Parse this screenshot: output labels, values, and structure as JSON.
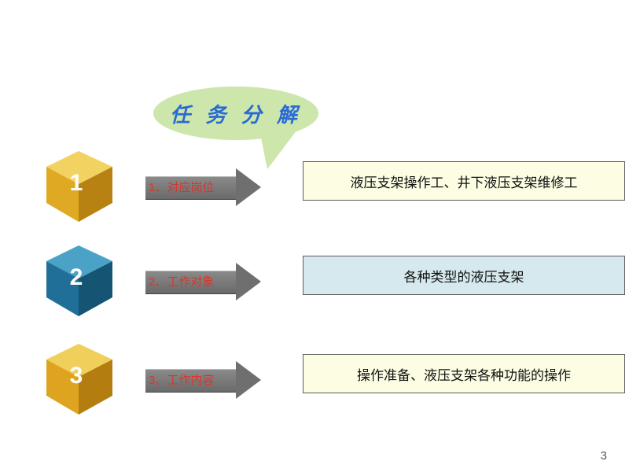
{
  "bubble": {
    "text": "任 务 分 解",
    "bg": "#cde6ac",
    "text_color": "#2a6ad4"
  },
  "rows": [
    {
      "num": "1",
      "cube_colors": {
        "top": "#f2d361",
        "left": "#e0a923",
        "right": "#b88212"
      },
      "arrow_label": "1、对应岗位",
      "box_text": "液压支架操作工、井下液压支架维修工",
      "box_bg": "#fcfde2"
    },
    {
      "num": "2",
      "cube_colors": {
        "top": "#4aa3c7",
        "left": "#1f6f99",
        "right": "#155472"
      },
      "arrow_label": "2、工作对象",
      "box_text": "各种类型的液压支架",
      "box_bg": "#d6e9ee"
    },
    {
      "num": "3",
      "cube_colors": {
        "top": "#f0cf5a",
        "left": "#dea41f",
        "right": "#b37d10"
      },
      "arrow_label": "3、工作内容",
      "box_text": "操作准备、液压支架各种功能的操作",
      "box_bg": "#fcfde2"
    }
  ],
  "row_tops": [
    190,
    310,
    435
  ],
  "page_number": "3"
}
